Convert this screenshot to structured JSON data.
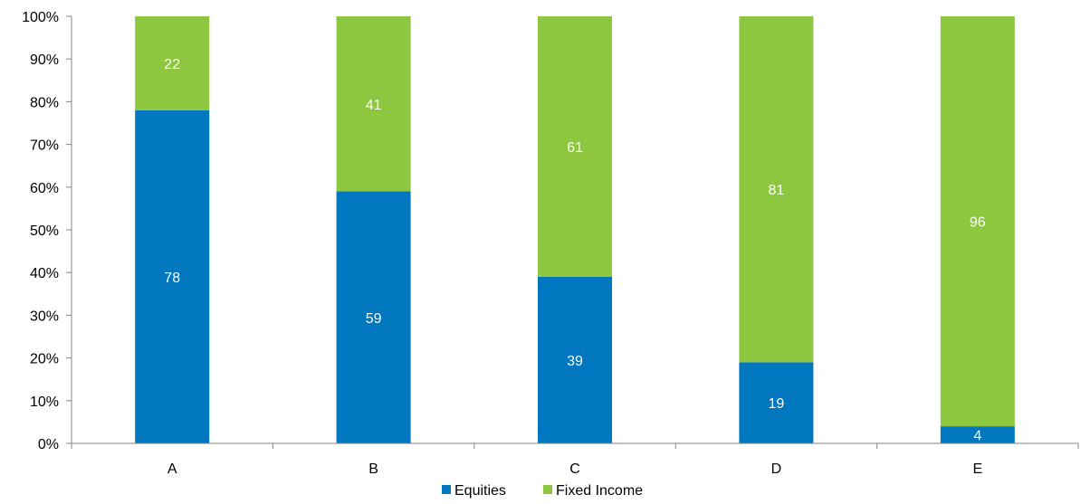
{
  "chart_data": {
    "type": "bar",
    "stacked": true,
    "percent": true,
    "categories": [
      "A",
      "B",
      "C",
      "D",
      "E"
    ],
    "series": [
      {
        "name": "Equities",
        "values": [
          78,
          59,
          39,
          19,
          4
        ],
        "color": "#0077BE"
      },
      {
        "name": "Fixed Income",
        "values": [
          22,
          41,
          61,
          81,
          96
        ],
        "color": "#8DC63F"
      }
    ],
    "ylim": [
      0,
      100
    ],
    "yticks": [
      "0%",
      "10%",
      "20%",
      "30%",
      "40%",
      "50%",
      "60%",
      "70%",
      "80%",
      "90%",
      "100%"
    ],
    "grid": false,
    "legend": "bottom"
  }
}
